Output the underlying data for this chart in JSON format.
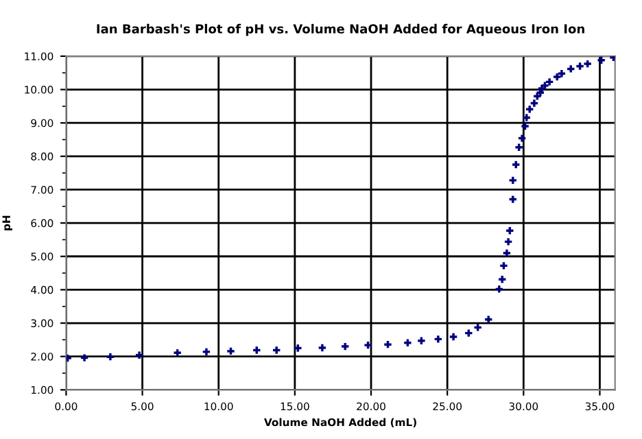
{
  "chart_data": {
    "type": "scatter",
    "title": "Ian Barbash's Plot of pH vs. Volume NaOH Added for Aqueous Iron Ion",
    "xlabel": "Volume NaOH Added (mL)",
    "ylabel": "pH",
    "series": [
      {
        "color": "#000080",
        "x": [
          0.1,
          1.2,
          2.9,
          4.8,
          7.3,
          9.2,
          10.8,
          12.5,
          13.8,
          15.2,
          16.8,
          18.3,
          19.8,
          21.1,
          22.4,
          23.3,
          24.4,
          25.4,
          26.4,
          27.0,
          27.7,
          28.4,
          28.6,
          28.7,
          28.9,
          29.0,
          29.1,
          29.3,
          29.3,
          29.5,
          29.7,
          29.9,
          30.1,
          30.2,
          30.4,
          30.7,
          30.9,
          31.1,
          31.2,
          31.4,
          31.7,
          32.2,
          32.5,
          33.1,
          33.7,
          34.2,
          35.1,
          35.9
        ],
        "values": [
          1.95,
          1.96,
          1.99,
          2.04,
          2.11,
          2.14,
          2.16,
          2.19,
          2.19,
          2.25,
          2.26,
          2.3,
          2.34,
          2.36,
          2.41,
          2.47,
          2.52,
          2.59,
          2.7,
          2.87,
          3.11,
          4.02,
          4.31,
          4.72,
          5.1,
          5.44,
          5.77,
          6.71,
          7.28,
          7.75,
          8.27,
          8.54,
          8.9,
          9.16,
          9.41,
          9.59,
          9.8,
          9.91,
          10.03,
          10.12,
          10.23,
          10.38,
          10.48,
          10.62,
          10.7,
          10.77,
          10.88,
          10.96
        ]
      }
    ],
    "marker": "cross",
    "grid": true,
    "xlim": [
      0,
      36
    ],
    "xticks": [
      {
        "value": 0,
        "label": "0.00"
      },
      {
        "value": 5,
        "label": "5.00"
      },
      {
        "value": 10,
        "label": "10.00"
      },
      {
        "value": 15,
        "label": "15.00"
      },
      {
        "value": 20,
        "label": "20.00"
      },
      {
        "value": 25,
        "label": "25.00"
      },
      {
        "value": 30,
        "label": "30.00"
      },
      {
        "value": 35,
        "label": "35.00"
      }
    ],
    "ylim": [
      1,
      11
    ],
    "yticks": [
      {
        "value": 1,
        "label": "1.00"
      },
      {
        "value": 1.5,
        "label": null
      },
      {
        "value": 2,
        "label": "2.00"
      },
      {
        "value": 2.5,
        "label": null
      },
      {
        "value": 3,
        "label": "3.00"
      },
      {
        "value": 3.5,
        "label": null
      },
      {
        "value": 4,
        "label": "4.00"
      },
      {
        "value": 4.5,
        "label": null
      },
      {
        "value": 5,
        "label": "5.00"
      },
      {
        "value": 5.5,
        "label": null
      },
      {
        "value": 6,
        "label": "6.00"
      },
      {
        "value": 6.5,
        "label": null
      },
      {
        "value": 7,
        "label": "7.00"
      },
      {
        "value": 7.5,
        "label": null
      },
      {
        "value": 8,
        "label": "8.00"
      },
      {
        "value": 8.5,
        "label": null
      },
      {
        "value": 9,
        "label": "9.00"
      },
      {
        "value": 9.5,
        "label": null
      },
      {
        "value": 10,
        "label": "10.00"
      },
      {
        "value": 10.5,
        "label": null
      },
      {
        "value": 11,
        "label": "11.00"
      }
    ]
  }
}
